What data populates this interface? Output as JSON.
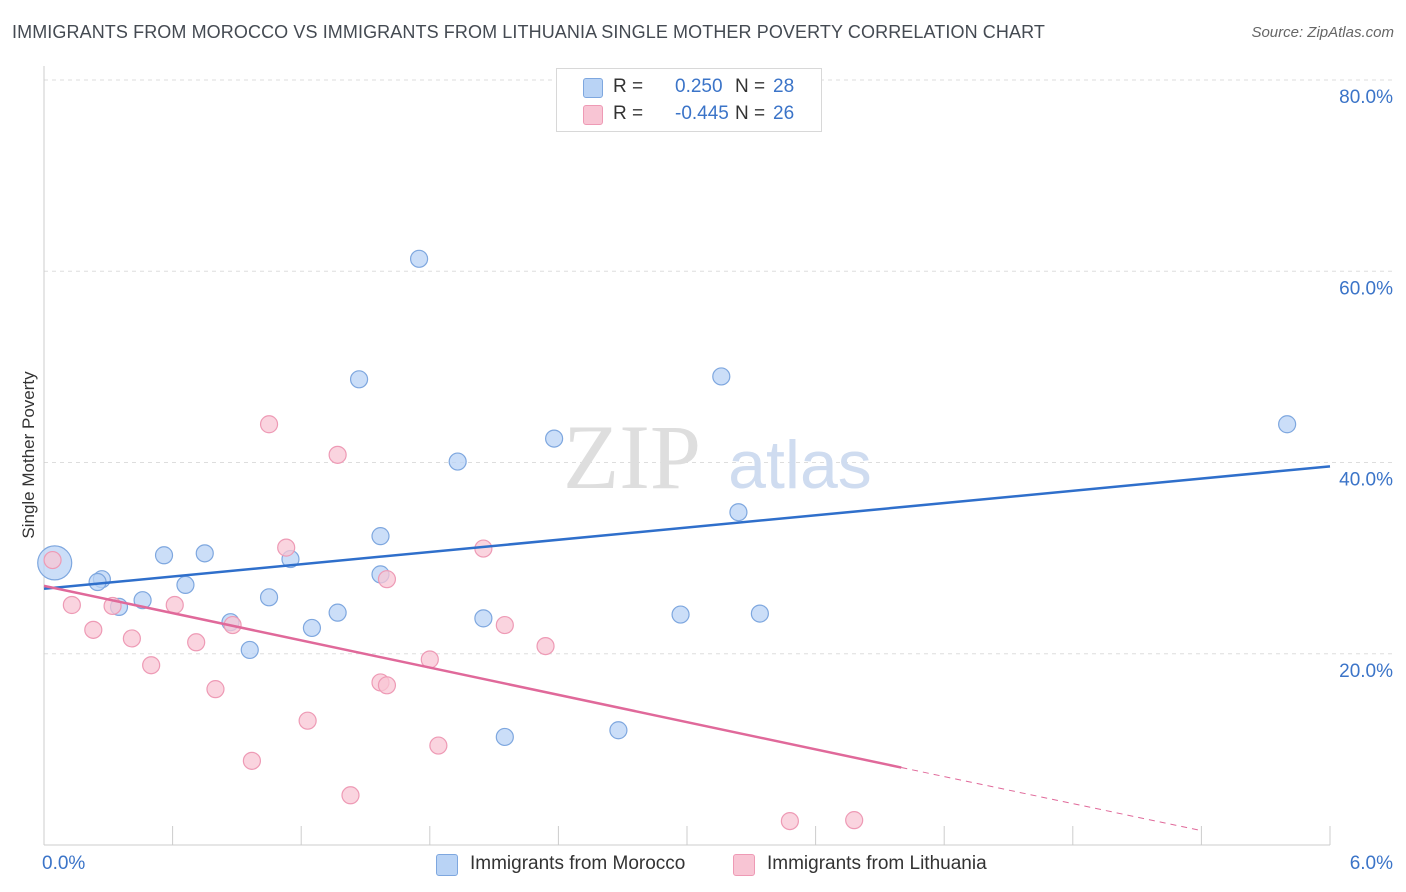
{
  "title": "IMMIGRANTS FROM MOROCCO VS IMMIGRANTS FROM LITHUANIA SINGLE MOTHER POVERTY CORRELATION CHART",
  "source": "Source: ZipAtlas.com",
  "watermark": {
    "zip": "ZIP",
    "atlas": "atlas"
  },
  "legend": {
    "morocco": {
      "r_label": "R =",
      "r_value": "0.250",
      "n_label": "N =",
      "n_value": "28"
    },
    "lithuania": {
      "r_label": "R =",
      "r_value": "-0.445",
      "n_label": "N =",
      "n_value": "26"
    }
  },
  "bottom_legend": {
    "morocco": "Immigrants from Morocco",
    "lithuania": "Immigrants from Lithuania"
  },
  "colors": {
    "morocco_fill": "#b9d3f5",
    "morocco_stroke": "#7ea7df",
    "morocco_line": "#2f6fcb",
    "lithuania_fill": "#f8c5d4",
    "lithuania_stroke": "#ee9ab5",
    "lithuania_line": "#e0699a",
    "tick_label": "#3b74c8",
    "grid": "#dddddd"
  },
  "chart_data": {
    "type": "scatter",
    "title": "IMMIGRANTS FROM MOROCCO VS IMMIGRANTS FROM LITHUANIA SINGLE MOTHER POVERTY CORRELATION CHART",
    "xlabel": "",
    "ylabel": "Single Mother Poverty",
    "xlim": [
      0,
      6
    ],
    "ylim": [
      0,
      80
    ],
    "x_tick_labels": [
      "0.0%",
      "6.0%"
    ],
    "y_ticks": [
      20,
      40,
      60,
      80
    ],
    "y_tick_labels": [
      "20.0%",
      "40.0%",
      "60.0%",
      "80.0%"
    ],
    "grid": true,
    "legend_position": "top-center",
    "series": [
      {
        "name": "Immigrants from Morocco",
        "points": [
          [
            0.05,
            29.5,
            "large"
          ],
          [
            0.27,
            27.8
          ],
          [
            0.25,
            27.5
          ],
          [
            0.35,
            24.9
          ],
          [
            0.46,
            25.6
          ],
          [
            0.56,
            30.3
          ],
          [
            0.66,
            27.2
          ],
          [
            0.75,
            30.5
          ],
          [
            0.87,
            23.3
          ],
          [
            0.96,
            20.4
          ],
          [
            1.05,
            25.9
          ],
          [
            1.15,
            29.9
          ],
          [
            1.25,
            22.7
          ],
          [
            1.37,
            24.3
          ],
          [
            1.47,
            48.7
          ],
          [
            1.57,
            32.3
          ],
          [
            1.57,
            28.3
          ],
          [
            1.75,
            61.3
          ],
          [
            1.93,
            40.1
          ],
          [
            2.05,
            23.7
          ],
          [
            2.15,
            11.3
          ],
          [
            2.38,
            42.5
          ],
          [
            2.68,
            12.0
          ],
          [
            2.97,
            24.1
          ],
          [
            3.16,
            49.0
          ],
          [
            3.24,
            34.8
          ],
          [
            3.34,
            24.2
          ],
          [
            5.8,
            44.0
          ]
        ],
        "trend": {
          "x": [
            0,
            6
          ],
          "y": [
            26.8,
            39.6
          ]
        }
      },
      {
        "name": "Immigrants from Lithuania",
        "points": [
          [
            0.04,
            29.8
          ],
          [
            0.13,
            25.1
          ],
          [
            0.23,
            22.5
          ],
          [
            0.32,
            25.0
          ],
          [
            0.41,
            21.6
          ],
          [
            0.5,
            18.8
          ],
          [
            0.61,
            25.1
          ],
          [
            0.71,
            21.2
          ],
          [
            0.8,
            16.3
          ],
          [
            0.88,
            23.0
          ],
          [
            0.97,
            8.8
          ],
          [
            1.05,
            44.0
          ],
          [
            1.13,
            31.1
          ],
          [
            1.23,
            13.0
          ],
          [
            1.37,
            40.8
          ],
          [
            1.43,
            5.2
          ],
          [
            1.57,
            17.0
          ],
          [
            1.6,
            16.7
          ],
          [
            1.6,
            27.8
          ],
          [
            1.8,
            19.4
          ],
          [
            1.84,
            10.4
          ],
          [
            2.05,
            31.0
          ],
          [
            2.15,
            23.0
          ],
          [
            2.34,
            20.8
          ],
          [
            3.48,
            2.5
          ],
          [
            3.78,
            2.6
          ]
        ],
        "trend": {
          "x": [
            0,
            4.0
          ],
          "y": [
            27.1,
            8.1
          ]
        },
        "trend_extension": {
          "x": [
            4.0,
            5.4
          ],
          "y": [
            8.1,
            1.5
          ]
        }
      }
    ]
  }
}
